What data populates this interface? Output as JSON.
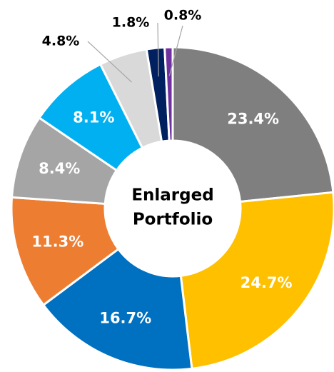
{
  "chart_data": {
    "type": "donut",
    "center_text": [
      "Enlarged",
      "Portfolio"
    ],
    "values": [
      23.4,
      24.7,
      16.7,
      11.3,
      8.4,
      8.1,
      4.8,
      1.8,
      0.8
    ],
    "value_labels": [
      "23.4%",
      "24.7%",
      "16.7%",
      "11.3%",
      "8.4%",
      "8.1%",
      "4.8%",
      "1.8%",
      "0.8%"
    ],
    "colors": [
      "#7f7f7f",
      "#ffc000",
      "#0070c0",
      "#ed7d31",
      "#a5a5a5",
      "#00b0f0",
      "#d9d9d9",
      "#002060",
      "#7030a0"
    ]
  }
}
